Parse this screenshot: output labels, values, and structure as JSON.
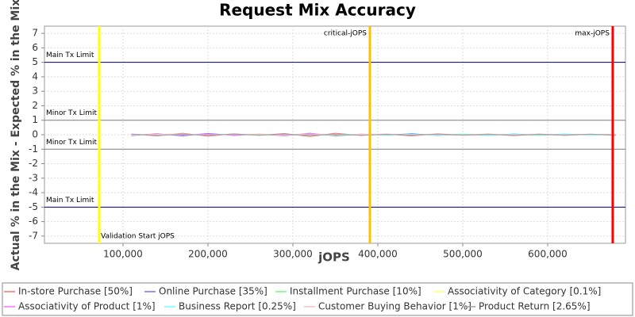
{
  "chart_data": {
    "type": "line",
    "title": "Request Mix Accuracy",
    "x_label": "jOPS",
    "y_label": "Actual % in the Mix - Expected % in the Mix",
    "xlim": [
      7500,
      691600
    ],
    "ylim": [
      -7.5,
      7.5
    ],
    "xticks": [
      {
        "value": 100000,
        "label": "100,000"
      },
      {
        "value": 200000,
        "label": "200,000"
      },
      {
        "value": 300000,
        "label": "300,000"
      },
      {
        "value": 400000,
        "label": "400,000"
      },
      {
        "value": 500000,
        "label": "500,000"
      },
      {
        "value": 600000,
        "label": "600,000"
      }
    ],
    "yticks": [
      -7,
      -6,
      -5,
      -4,
      -3,
      -2,
      -1,
      0,
      1,
      2,
      3,
      4,
      5,
      6,
      7
    ],
    "grid": true,
    "hlines": [
      {
        "value": 5,
        "label": "Main Tx Limit",
        "color": "#000066"
      },
      {
        "value": 1,
        "label": "Minor Tx Limit",
        "color": "#808080"
      },
      {
        "value": -1,
        "label": "Minor Tx Limit",
        "color": "#808080"
      },
      {
        "value": -5,
        "label": "Main Tx Limit",
        "color": "#000066"
      }
    ],
    "vlines": [
      {
        "value": 72000,
        "label": "Validation Start jOPS",
        "color": "#ffff00"
      },
      {
        "value": 390700,
        "label": "critical-jOPS",
        "color": "#ffc000"
      },
      {
        "value": 676600,
        "label": "max-jOPS",
        "color": "#ff0000"
      }
    ],
    "x": [
      110000,
      140000,
      170000,
      200000,
      230000,
      260000,
      290000,
      320000,
      350000,
      380000,
      410000,
      440000,
      470000,
      500000,
      530000,
      560000,
      590000,
      620000,
      650000,
      680000
    ],
    "series": [
      {
        "name": "In-store Purchase [50%]",
        "color": "#ff7070",
        "values": [
          0.05,
          -0.08,
          0.1,
          -0.1,
          0.06,
          -0.04,
          0.08,
          -0.12,
          0.1,
          -0.05,
          0.04,
          -0.08,
          0.06,
          -0.03,
          0.05,
          -0.06,
          0.04,
          -0.05,
          0.03,
          -0.04
        ]
      },
      {
        "name": "Online Purchase [35%]",
        "color": "#7070ff",
        "values": [
          -0.06,
          0.07,
          -0.08,
          0.09,
          -0.05,
          0.04,
          -0.07,
          0.1,
          -0.08,
          0.04,
          -0.03,
          0.07,
          -0.05,
          0.03,
          -0.04,
          0.05,
          -0.03,
          0.04,
          -0.02,
          0.03
        ]
      },
      {
        "name": "Installment Purchase [10%]",
        "color": "#70ff70",
        "values": [
          0.02,
          -0.03,
          0.04,
          -0.02,
          0.03,
          -0.04,
          0.02,
          0.03,
          -0.05,
          0.02,
          -0.02,
          0.03,
          -0.02,
          0.04,
          -0.03,
          0.02,
          -0.04,
          0.02,
          0.01,
          -0.02
        ]
      },
      {
        "name": "Associativity of Category [0.1%]",
        "color": "#ffff70",
        "values": [
          0.01,
          0.0,
          -0.01,
          0.01,
          0.0,
          -0.01,
          0.01,
          0.0,
          -0.01,
          0.01,
          0.0,
          0.01,
          -0.01,
          0.0,
          0.01,
          -0.01,
          0.0,
          0.01,
          0.0,
          -0.01
        ]
      },
      {
        "name": "Associativity of Product [1%]",
        "color": "#ff70ff",
        "values": [
          -0.03,
          0.04,
          -0.02,
          0.05,
          -0.03,
          0.02,
          -0.04,
          0.03,
          0.02,
          -0.03,
          0.04,
          -0.02,
          0.03,
          -0.04,
          0.02,
          -0.03,
          0.04,
          -0.02,
          0.03,
          -0.02
        ]
      },
      {
        "name": "Business Report [0.25%]",
        "color": "#70ffff",
        "values": [
          0.03,
          -0.02,
          0.02,
          -0.03,
          0.04,
          -0.02,
          0.03,
          -0.04,
          0.02,
          0.03,
          -0.02,
          0.02,
          -0.03,
          0.02,
          -0.02,
          0.03,
          -0.02,
          0.02,
          -0.03,
          0.02
        ]
      },
      {
        "name": "Customer Buying Behavior [1%]",
        "color": "#ffc0c0",
        "values": [
          -0.02,
          0.03,
          0.05,
          -0.04,
          0.02,
          0.04,
          -0.03,
          0.06,
          -0.02,
          0.03,
          0.05,
          -0.04,
          0.02,
          -0.03,
          0.04,
          -0.02,
          0.03,
          -0.04,
          0.02,
          0.03
        ]
      },
      {
        "name": "Product Return [2.65%]",
        "color": "#a0a0a0",
        "values": [
          0.04,
          -0.05,
          0.03,
          -0.04,
          0.05,
          -0.03,
          0.04,
          -0.05,
          0.03,
          -0.04,
          0.02,
          -0.03,
          0.04,
          -0.02,
          0.03,
          -0.04,
          0.02,
          -0.03,
          0.04,
          -0.03
        ]
      }
    ]
  }
}
